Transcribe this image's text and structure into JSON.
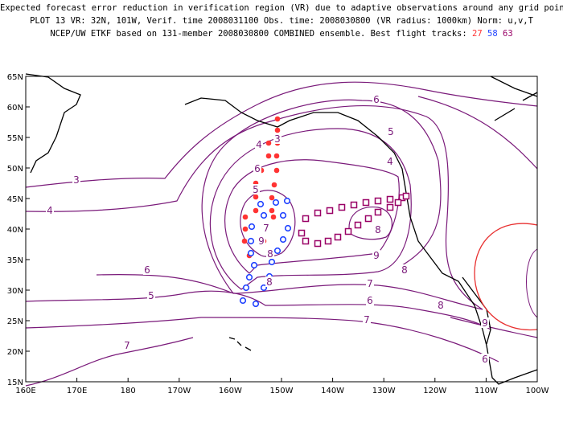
{
  "title_lines": [
    "Expected forecast error reduction in verification region (VR) due to adaptive observations around any grid point.",
    "PLOT 13 VR: 32N, 101W, Verif. time 2008031100 Obs. time: 2008030800 (VR radius: 1000km) Norm: u,v,T",
    "NCEP/UW ETKF based on 131-member 2008030800 COMBINED ensemble.  Best flight tracks:"
  ],
  "flight_tracks": [
    "27",
    "58",
    "63"
  ],
  "colors": {
    "track_27": "#ff3333",
    "track_58": "#2244ff",
    "track_63": "#990066",
    "contour": "#7a1a7a",
    "coast": "#000000",
    "verification_circle": "#e83030"
  },
  "axes": {
    "x_ticks": [
      "160E",
      "170E",
      "180",
      "170W",
      "160W",
      "150W",
      "140W",
      "130W",
      "120W",
      "110W",
      "100W"
    ],
    "y_ticks": [
      "65N",
      "60N",
      "55N",
      "50N",
      "45N",
      "40N",
      "35N",
      "30N",
      "25N",
      "20N",
      "15N"
    ]
  },
  "contour_labels": [
    {
      "text": "3",
      "lon": -161.5,
      "lat": 48.5
    },
    {
      "text": "4",
      "lon": -160.5,
      "lat": 46.5
    },
    {
      "text": "5",
      "lon": -172,
      "lat": 21.8
    },
    {
      "text": "6",
      "lon": -174,
      "lat": 21.2
    },
    {
      "text": "6",
      "lon": -178.2,
      "lat": 17.6
    },
    {
      "text": "7",
      "lon": -151,
      "lat": 14.0
    },
    {
      "text": "7",
      "lon": -150,
      "lat": 10.5
    },
    {
      "text": "8",
      "lon": -149.2,
      "lat": 13.8
    },
    {
      "text": "8",
      "lon": -150.5,
      "lat": 11.5
    },
    {
      "text": "9",
      "lon": -150.2,
      "lat": 12.5
    },
    {
      "text": "8",
      "lon": -152.5,
      "lat": 14.5
    },
    {
      "text": "9",
      "lon": -151.5,
      "lat": 13.5
    },
    {
      "text": "6",
      "lon": -148,
      "lat": 22.5
    },
    {
      "text": "7",
      "lon": -143.5,
      "lat": 33.5
    },
    {
      "text": "8",
      "lon": -137.5,
      "lat": 47.5
    },
    {
      "text": "9",
      "lon": -137,
      "lat": 27.5
    },
    {
      "text": "8",
      "lon": -131,
      "lat": 35.5
    },
    {
      "text": "7",
      "lon": -121.5,
      "lat": 37.5
    },
    {
      "text": "6",
      "lon": -126,
      "lat": 39
    },
    {
      "text": "5",
      "lon": -126,
      "lat": 41.5
    },
    {
      "text": "4",
      "lon": -134.5,
      "lat": 44.5
    },
    {
      "text": "3",
      "lon": -176.5,
      "lat": 42
    },
    {
      "text": "6",
      "lon": -112,
      "lat": 44.5
    },
    {
      "text": "5",
      "lon": -110,
      "lat": 25.5
    },
    {
      "text": "4",
      "lon": -110,
      "lat": 19
    }
  ],
  "contour_value_labels": [
    "3",
    "4",
    "5",
    "6",
    "7",
    "8",
    "9",
    "8",
    "7",
    "6",
    "5",
    "4",
    "3",
    "6",
    "5",
    "4",
    "8",
    "9",
    "8",
    "7",
    "6",
    "7",
    "8",
    "9",
    "6"
  ]
}
